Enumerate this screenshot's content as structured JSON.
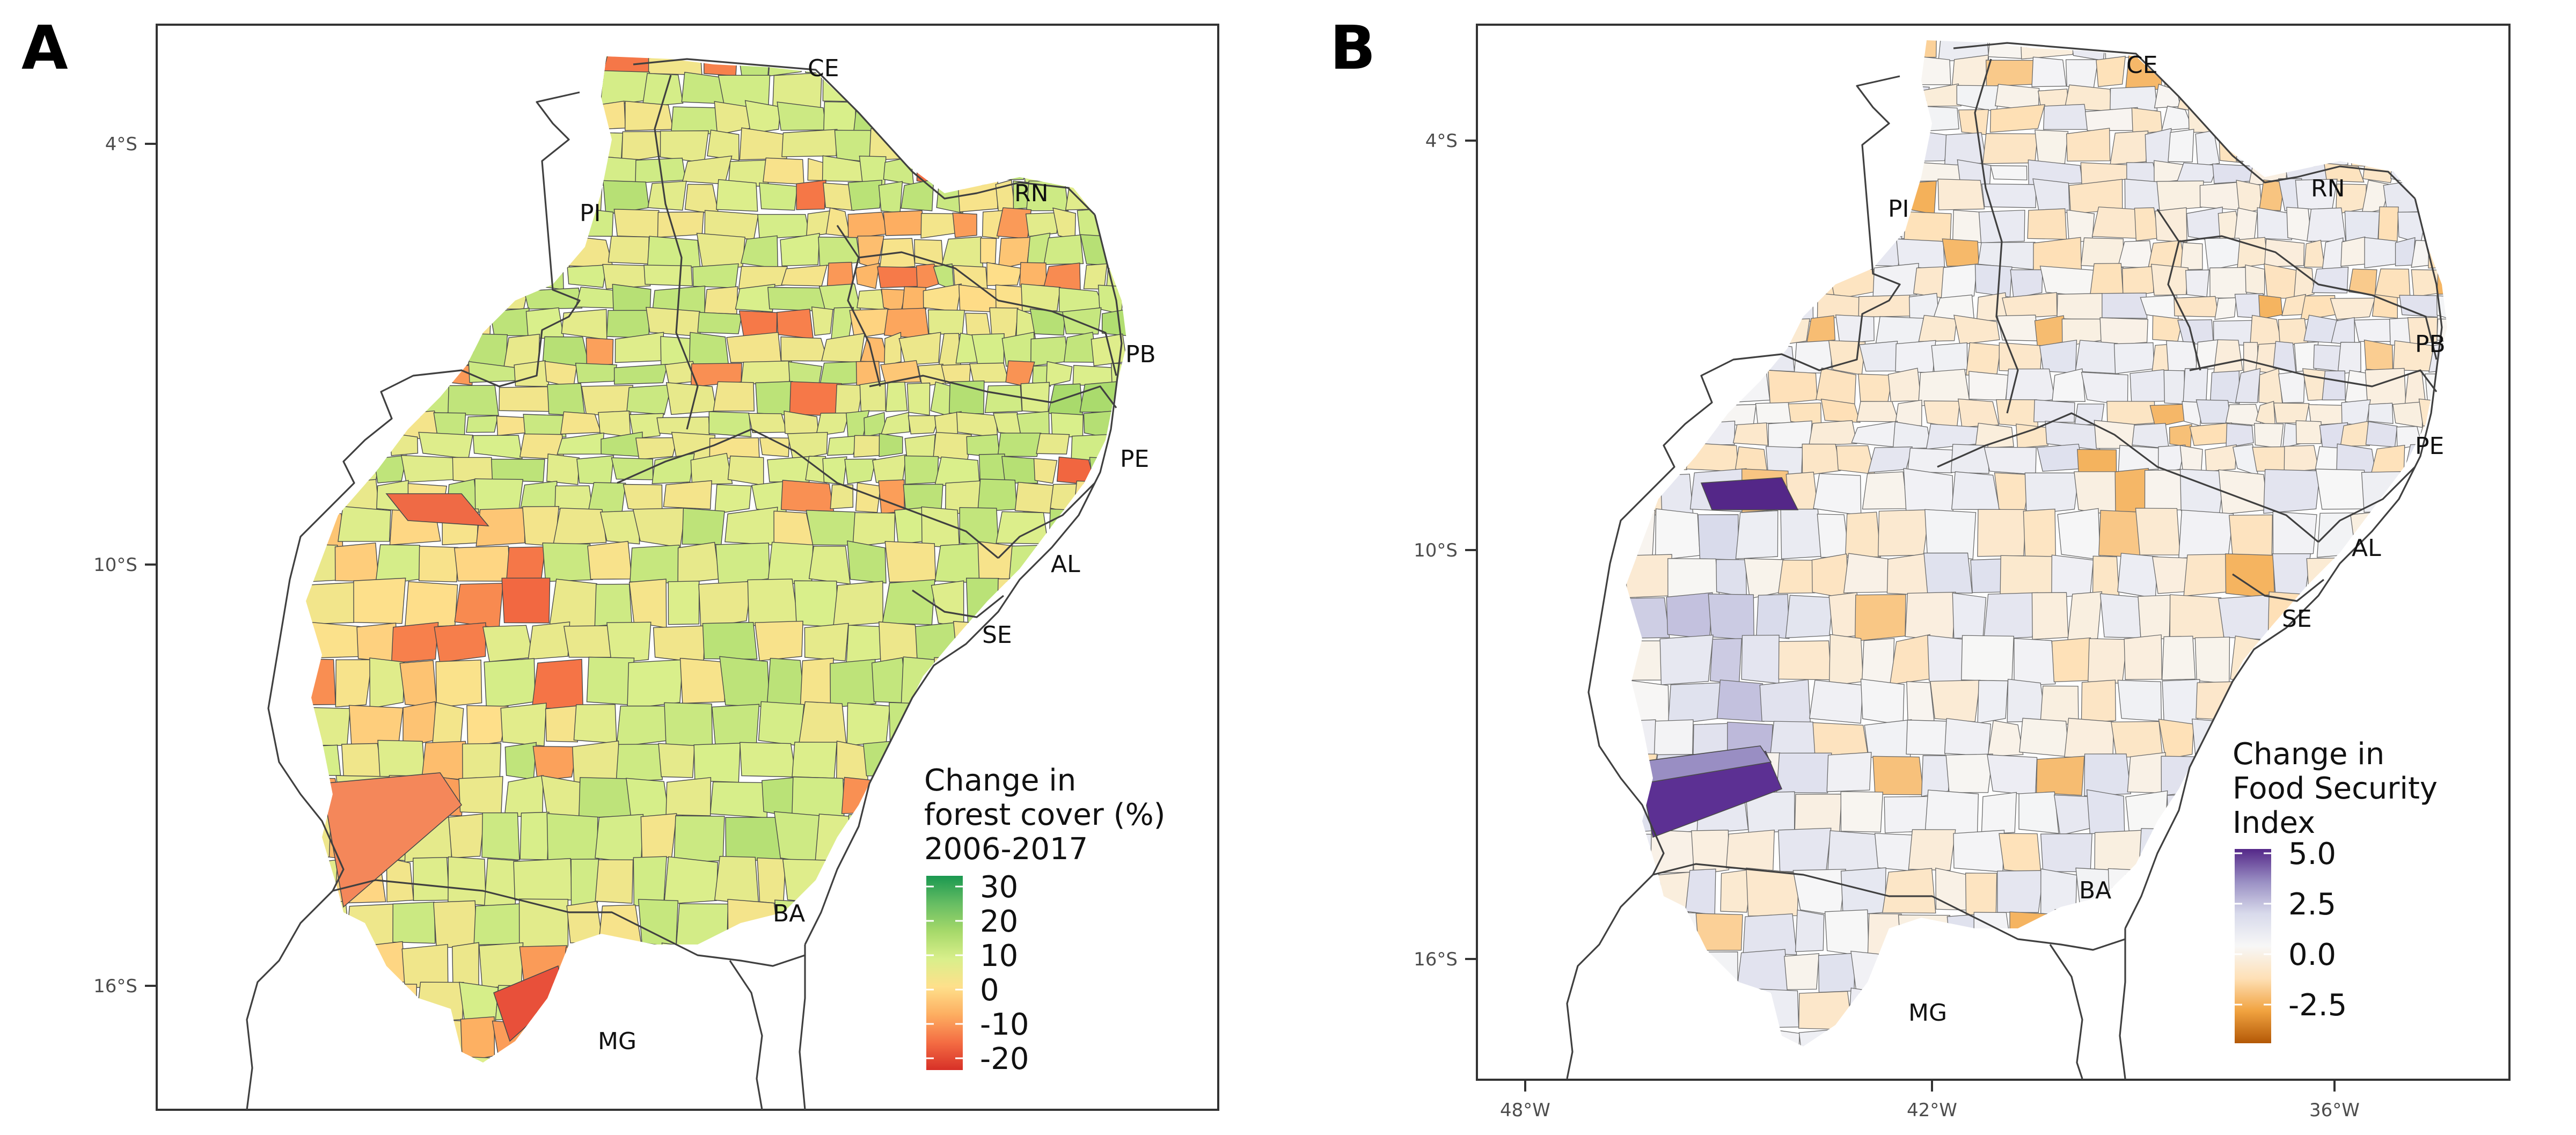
{
  "panels": [
    {
      "letter": "A",
      "legend": {
        "title_lines": [
          "Change in",
          "forest cover (%)",
          "2006-2017"
        ],
        "ticks": [
          "30",
          "20",
          "10",
          "0",
          "-10",
          "-20"
        ],
        "colors": [
          "#1a9850",
          "#66bd63",
          "#a6d96a",
          "#d9ef8b",
          "#fee08b",
          "#fdae61",
          "#f46d43",
          "#d73027"
        ]
      },
      "lat_labels": [
        "4°S",
        "10°S",
        "16°S"
      ],
      "states": [
        "CE",
        "RN",
        "PI",
        "PB",
        "PE",
        "AL",
        "SE",
        "BA",
        "MG"
      ]
    },
    {
      "letter": "B",
      "legend": {
        "title_lines": [
          "Change in",
          "Food Security",
          "Index"
        ],
        "ticks": [
          "5.0",
          "2.5",
          "0.0",
          "-2.5"
        ],
        "colors": [
          "#542788",
          "#998ec3",
          "#d8daeb",
          "#f7f7f7",
          "#fee0b6",
          "#f1a340",
          "#b35806"
        ]
      },
      "lat_labels": [
        "4°S",
        "10°S",
        "16°S"
      ],
      "lon_labels": [
        "48°W",
        "42°W",
        "36°W"
      ],
      "states": [
        "CE",
        "RN",
        "PI",
        "PB",
        "PE",
        "AL",
        "SE",
        "BA",
        "MG"
      ]
    }
  ]
}
